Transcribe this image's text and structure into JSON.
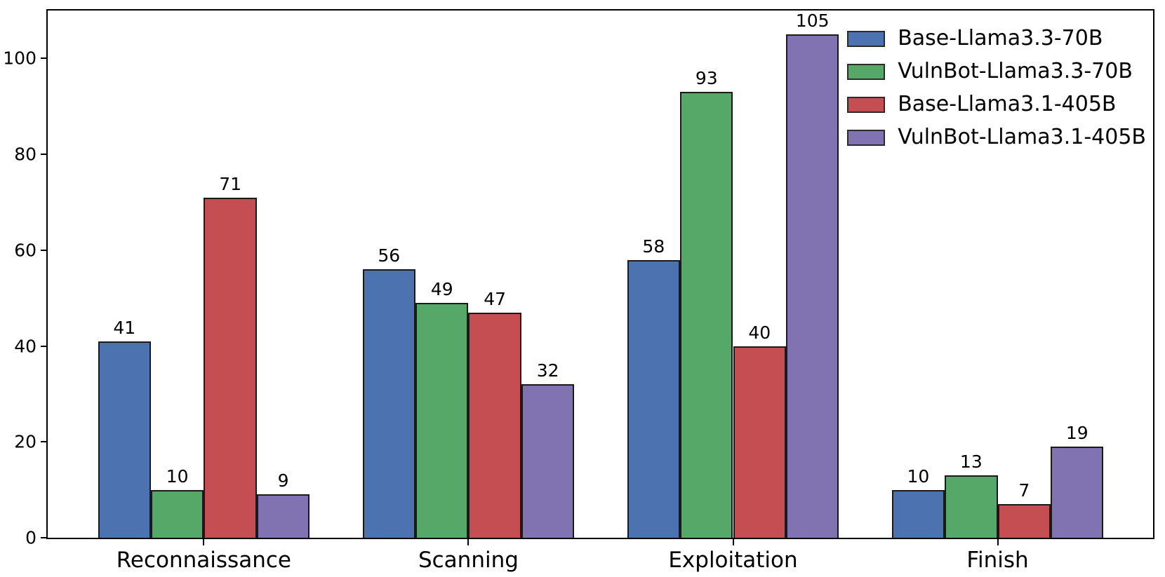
{
  "chart_data": {
    "type": "bar",
    "title": "",
    "xlabel": "",
    "ylabel": "",
    "categories": [
      "Reconnaissance",
      "Scanning",
      "Exploitation",
      "Finish"
    ],
    "series": [
      {
        "name": "Base-Llama3.3-70B",
        "color": "#4C72B0",
        "values": [
          41,
          56,
          58,
          10
        ]
      },
      {
        "name": "VulnBot-Llama3.3-70B",
        "color": "#55A868",
        "values": [
          10,
          49,
          93,
          13
        ]
      },
      {
        "name": "Base-Llama3.1-405B",
        "color": "#C44E52",
        "values": [
          71,
          47,
          40,
          7
        ]
      },
      {
        "name": "VulnBot-Llama3.1-405B",
        "color": "#8172B2",
        "values": [
          9,
          32,
          105,
          19
        ]
      }
    ],
    "bar_value_labels": [
      [
        41,
        10,
        71,
        9
      ],
      [
        56,
        49,
        47,
        32
      ],
      [
        58,
        93,
        40,
        105
      ],
      [
        10,
        13,
        7,
        19
      ]
    ],
    "ylim": [
      0,
      110
    ],
    "yticks": [
      0,
      20,
      40,
      60,
      80,
      100
    ],
    "grid": false,
    "legend_position": "top-right-inside",
    "axis_color": "#000000",
    "bar_edge_color": "#1a1a1a",
    "background_color": "#ffffff"
  }
}
